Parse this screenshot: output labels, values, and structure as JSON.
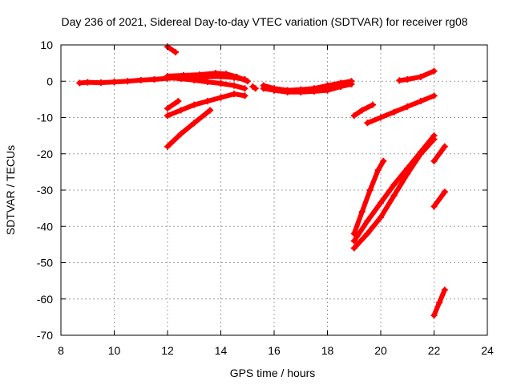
{
  "chart_data": {
    "type": "scatter",
    "title": "Day 236 of 2021, Sidereal Day-to-day VTEC variation (SDTVAR) for receiver rg08",
    "xlabel": "GPS time / hours",
    "ylabel": "SDTVAR / TECUs",
    "xlim": [
      8,
      24
    ],
    "ylim": [
      -70,
      10
    ],
    "xticks": [
      8,
      10,
      12,
      14,
      16,
      18,
      20,
      22,
      24
    ],
    "yticks": [
      10,
      0,
      -10,
      -20,
      -30,
      -40,
      -50,
      -60,
      -70
    ],
    "grid": true,
    "marker_color": "#ff0000",
    "series": [
      {
        "points": [
          [
            8.7,
            -0.5
          ],
          [
            9.0,
            -0.3
          ],
          [
            9.5,
            -0.4
          ],
          [
            10.0,
            -0.2
          ],
          [
            10.5,
            0.0
          ],
          [
            11.0,
            0.3
          ],
          [
            11.5,
            0.5
          ],
          [
            12.0,
            0.8
          ],
          [
            12.5,
            1.0
          ],
          [
            13.0,
            1.0
          ],
          [
            13.5,
            1.2
          ],
          [
            14.0,
            1.3
          ],
          [
            14.5,
            1.0
          ],
          [
            14.9,
            0.5
          ]
        ]
      },
      {
        "points": [
          [
            12.0,
            1.0
          ],
          [
            12.5,
            0.7
          ],
          [
            13.0,
            0.3
          ],
          [
            13.5,
            -0.2
          ],
          [
            14.0,
            -0.6
          ],
          [
            14.5,
            -1.2
          ],
          [
            14.9,
            -2.0
          ]
        ]
      },
      {
        "points": [
          [
            12.0,
            1.4
          ],
          [
            12.6,
            1.6
          ],
          [
            13.2,
            1.8
          ],
          [
            13.8,
            2.2
          ],
          [
            14.2,
            2.0
          ],
          [
            14.6,
            1.2
          ],
          [
            15.0,
            0.0
          ]
        ]
      },
      {
        "points": [
          [
            15.2,
            -1.5
          ],
          [
            15.3,
            -2.0
          ]
        ]
      },
      {
        "points": [
          [
            15.6,
            -2.0
          ],
          [
            16.0,
            -2.5
          ],
          [
            16.5,
            -3.0
          ],
          [
            17.0,
            -3.0
          ],
          [
            17.5,
            -2.8
          ],
          [
            18.0,
            -2.5
          ],
          [
            18.5,
            -1.5
          ],
          [
            18.9,
            -0.8
          ]
        ]
      },
      {
        "points": [
          [
            15.6,
            -1.2
          ],
          [
            16.0,
            -2.0
          ],
          [
            16.5,
            -2.5
          ],
          [
            17.0,
            -2.3
          ],
          [
            17.5,
            -2.0
          ],
          [
            18.0,
            -1.2
          ],
          [
            18.5,
            -0.5
          ],
          [
            18.9,
            0.0
          ]
        ]
      },
      {
        "points": [
          [
            12.0,
            9.5
          ],
          [
            12.3,
            8.0
          ]
        ]
      },
      {
        "points": [
          [
            12.0,
            -7.5
          ],
          [
            12.4,
            -5.5
          ]
        ]
      },
      {
        "points": [
          [
            12.0,
            -9.5
          ],
          [
            12.5,
            -8.0
          ],
          [
            13.0,
            -6.5
          ],
          [
            13.5,
            -5.5
          ],
          [
            14.0,
            -4.5
          ],
          [
            14.5,
            -3.5
          ],
          [
            14.9,
            -4.0
          ]
        ]
      },
      {
        "points": [
          [
            12.0,
            -18.0
          ],
          [
            12.5,
            -14.5
          ],
          [
            13.0,
            -11.5
          ],
          [
            13.6,
            -8.0
          ]
        ]
      },
      {
        "points": [
          [
            19.0,
            -9.5
          ],
          [
            19.3,
            -8.0
          ],
          [
            19.7,
            -6.5
          ]
        ]
      },
      {
        "points": [
          [
            19.5,
            -11.5
          ],
          [
            20.0,
            -10.0
          ],
          [
            20.5,
            -8.5
          ],
          [
            21.0,
            -7.0
          ],
          [
            21.5,
            -5.5
          ],
          [
            22.0,
            -4.0
          ]
        ]
      },
      {
        "points": [
          [
            20.7,
            0.2
          ],
          [
            21.0,
            0.5
          ],
          [
            21.5,
            1.2
          ],
          [
            22.0,
            2.8
          ]
        ]
      },
      {
        "points": [
          [
            19.0,
            -42.0
          ],
          [
            19.3,
            -36.0
          ],
          [
            19.6,
            -30.0
          ],
          [
            19.9,
            -24.5
          ],
          [
            20.1,
            -22.0
          ]
        ]
      },
      {
        "points": [
          [
            19.0,
            -44.0
          ],
          [
            19.5,
            -38.5
          ],
          [
            20.0,
            -33.5
          ],
          [
            20.5,
            -28.5
          ],
          [
            21.0,
            -24.0
          ],
          [
            21.5,
            -19.5
          ],
          [
            22.0,
            -15.0
          ]
        ]
      },
      {
        "points": [
          [
            19.0,
            -46.0
          ],
          [
            19.5,
            -42.0
          ],
          [
            20.0,
            -37.5
          ],
          [
            20.5,
            -31.5
          ],
          [
            21.0,
            -25.5
          ],
          [
            21.5,
            -20.0
          ],
          [
            22.0,
            -16.0
          ]
        ]
      },
      {
        "points": [
          [
            22.0,
            -22.0
          ],
          [
            22.4,
            -18.0
          ]
        ]
      },
      {
        "points": [
          [
            22.0,
            -34.5
          ],
          [
            22.4,
            -30.5
          ]
        ]
      },
      {
        "points": [
          [
            22.0,
            -64.5
          ],
          [
            22.2,
            -61.0
          ],
          [
            22.4,
            -57.5
          ]
        ]
      }
    ]
  }
}
